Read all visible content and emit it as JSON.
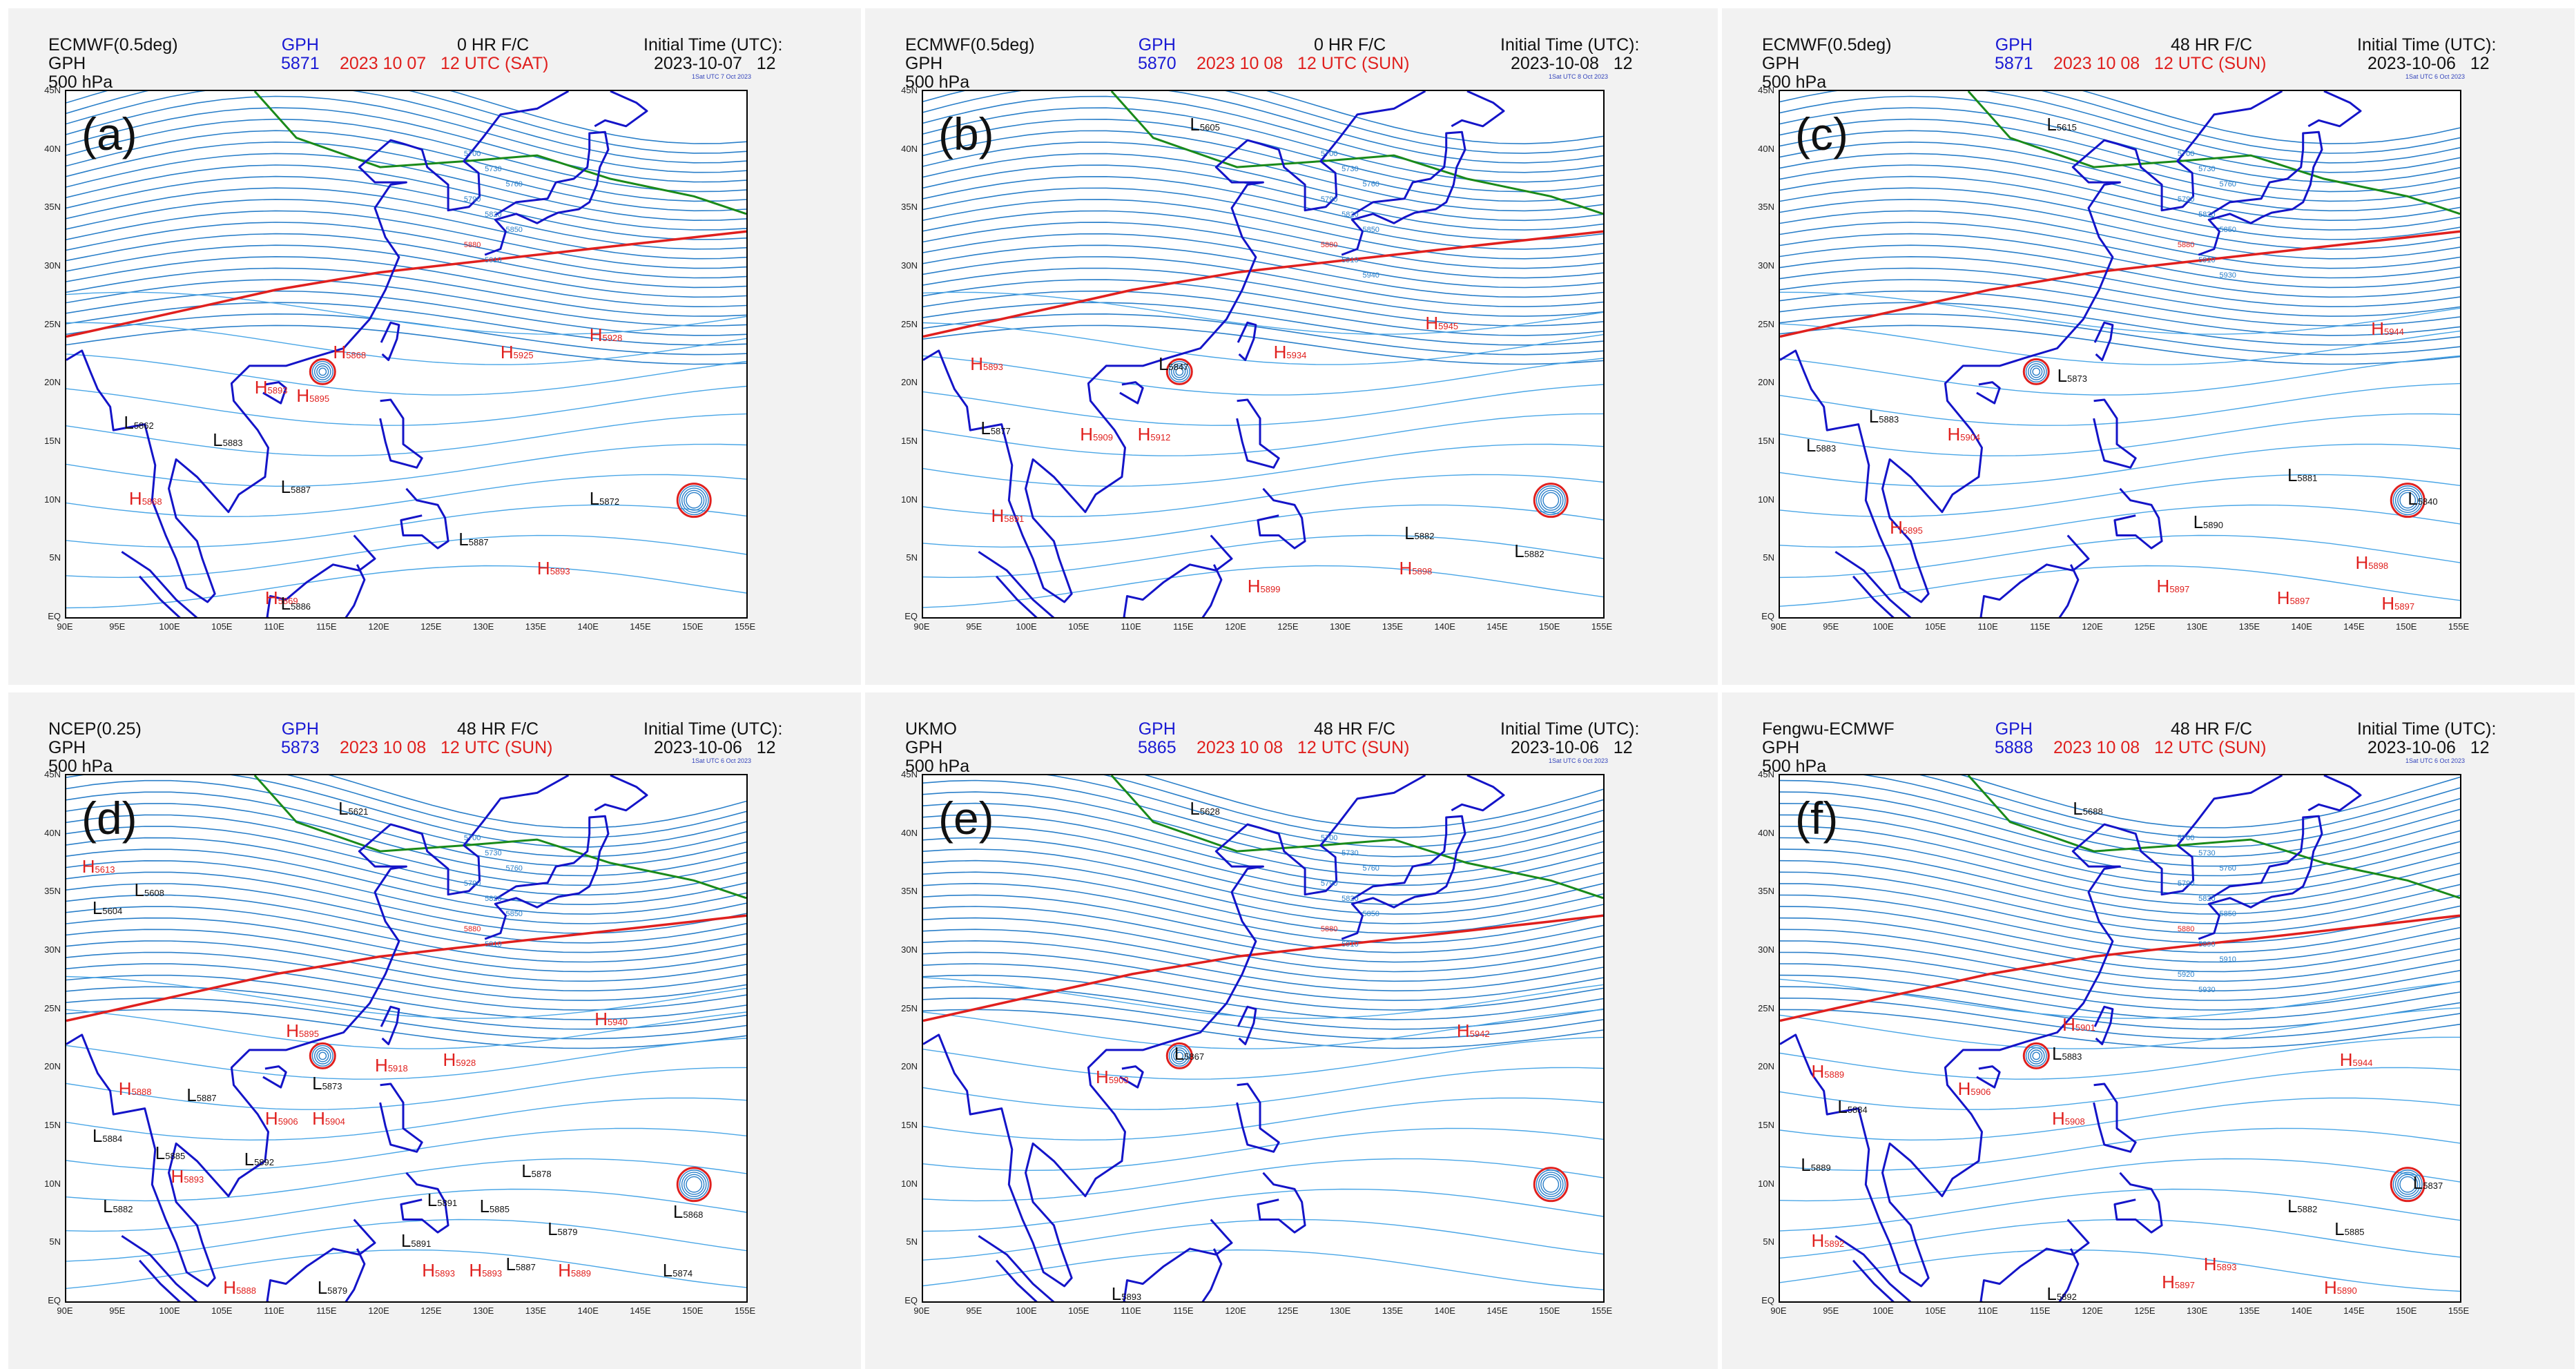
{
  "colors": {
    "contour": "#4aa6e6",
    "contour_dense": "#2a7fc9",
    "ridge_5880": "#e0201e",
    "trough_5700": "#1a8a1a",
    "coast": "#1414c8",
    "gph_text": "#1a1ad4",
    "valid_text": "#e0201e"
  },
  "axes": {
    "lat_ticks": [
      "45N",
      "40N",
      "35N",
      "30N",
      "25N",
      "20N",
      "15N",
      "10N",
      "5N",
      "EQ"
    ],
    "lon_ticks": [
      "90E",
      "95E",
      "100E",
      "105E",
      "110E",
      "115E",
      "120E",
      "125E",
      "130E",
      "135E",
      "140E",
      "145E",
      "150E",
      "155E"
    ]
  },
  "panels": [
    {
      "letter": "(a)",
      "title_lines": "ECMWF(0.5deg)\nGPH\n500 hPa",
      "gph_label": "GPH",
      "gph_value": "5871",
      "forecast": "0 HR F/C",
      "valid": "2023 10 07   12 UTC (SAT)",
      "init_label": "Initial Time (UTC):",
      "init_date": "2023-10-07   12",
      "stamp": "1Sat UTC 7 Oct 2023",
      "contour_labels": [
        "5700",
        "5730",
        "5760",
        "5790",
        "5820",
        "5850",
        "5880",
        "5910"
      ],
      "systems": [
        {
          "t": "H",
          "v": "5868",
          "lon": 115.5,
          "lat": 22.5
        },
        {
          "t": "H",
          "v": "5893",
          "lon": 108,
          "lat": 19.5
        },
        {
          "t": "H",
          "v": "5895",
          "lon": 112,
          "lat": 18.8
        },
        {
          "t": "H",
          "v": "5925",
          "lon": 131.5,
          "lat": 22.5
        },
        {
          "t": "H",
          "v": "5928",
          "lon": 140,
          "lat": 24
        },
        {
          "t": "H",
          "v": "5868",
          "lon": 96,
          "lat": 10
        },
        {
          "t": "H",
          "v": "5893",
          "lon": 135,
          "lat": 4
        },
        {
          "t": "H",
          "v": "5869",
          "lon": 109,
          "lat": 1.5
        },
        {
          "t": "L",
          "v": "5862",
          "lon": 95.5,
          "lat": 16.5
        },
        {
          "t": "L",
          "v": "5883",
          "lon": 104,
          "lat": 15
        },
        {
          "t": "L",
          "v": "5887",
          "lon": 110.5,
          "lat": 11
        },
        {
          "t": "L",
          "v": "5872",
          "lon": 140,
          "lat": 10
        },
        {
          "t": "L",
          "v": "5887",
          "lon": 127.5,
          "lat": 6.5
        },
        {
          "t": "L",
          "v": "5886",
          "lon": 110.5,
          "lat": 1
        }
      ]
    },
    {
      "letter": "(b)",
      "title_lines": "ECMWF(0.5deg)\nGPH\n500 hPa",
      "gph_label": "GPH",
      "gph_value": "5870",
      "forecast": "0 HR F/C",
      "valid": "2023 10 08   12 UTC (SUN)",
      "init_label": "Initial Time (UTC):",
      "init_date": "2023-10-08   12",
      "stamp": "1Sat UTC 8 Oct 2023",
      "contour_labels": [
        "5700",
        "5730",
        "5760",
        "5790",
        "5820",
        "5850",
        "5880",
        "5910",
        "5940"
      ],
      "systems": [
        {
          "t": "L",
          "v": "5605",
          "lon": 115.5,
          "lat": 42
        },
        {
          "t": "H",
          "v": "5893",
          "lon": 94.5,
          "lat": 21.5
        },
        {
          "t": "H",
          "v": "5934",
          "lon": 123.5,
          "lat": 22.5
        },
        {
          "t": "H",
          "v": "5945",
          "lon": 138,
          "lat": 25
        },
        {
          "t": "L",
          "v": "5847",
          "lon": 112.5,
          "lat": 21.5
        },
        {
          "t": "L",
          "v": "5877",
          "lon": 95.5,
          "lat": 16
        },
        {
          "t": "H",
          "v": "5909",
          "lon": 105,
          "lat": 15.5
        },
        {
          "t": "H",
          "v": "5912",
          "lon": 110.5,
          "lat": 15.5
        },
        {
          "t": "H",
          "v": "5891",
          "lon": 96.5,
          "lat": 8.5
        },
        {
          "t": "L",
          "v": "5882",
          "lon": 136,
          "lat": 7
        },
        {
          "t": "L",
          "v": "5882",
          "lon": 146.5,
          "lat": 5.5
        },
        {
          "t": "H",
          "v": "5898",
          "lon": 135.5,
          "lat": 4
        },
        {
          "t": "H",
          "v": "5899",
          "lon": 121,
          "lat": 2.5
        }
      ]
    },
    {
      "letter": "(c)",
      "title_lines": "ECMWF(0.5deg)\nGPH\n500 hPa",
      "gph_label": "GPH",
      "gph_value": "5871",
      "forecast": "48 HR F/C",
      "valid": "2023 10 08   12 UTC (SUN)",
      "init_label": "Initial Time (UTC):",
      "init_date": "2023-10-06   12",
      "stamp": "1Sat UTC 6 Oct 2023",
      "contour_labels": [
        "5700",
        "5730",
        "5760",
        "5790",
        "5820",
        "5850",
        "5880",
        "5910",
        "5930"
      ],
      "systems": [
        {
          "t": "L",
          "v": "5615",
          "lon": 115.5,
          "lat": 42
        },
        {
          "t": "H",
          "v": "5944",
          "lon": 146.5,
          "lat": 24.5
        },
        {
          "t": "L",
          "v": "5873",
          "lon": 116.5,
          "lat": 20.5
        },
        {
          "t": "L",
          "v": "5883",
          "lon": 98.5,
          "lat": 17
        },
        {
          "t": "L",
          "v": "5883",
          "lon": 92.5,
          "lat": 14.5
        },
        {
          "t": "H",
          "v": "5904",
          "lon": 106,
          "lat": 15.5
        },
        {
          "t": "L",
          "v": "5881",
          "lon": 138.5,
          "lat": 12
        },
        {
          "t": "L",
          "v": "5840",
          "lon": 150,
          "lat": 10
        },
        {
          "t": "H",
          "v": "5895",
          "lon": 100.5,
          "lat": 7.5
        },
        {
          "t": "L",
          "v": "5890",
          "lon": 129.5,
          "lat": 8
        },
        {
          "t": "H",
          "v": "5898",
          "lon": 145,
          "lat": 4.5
        },
        {
          "t": "H",
          "v": "5897",
          "lon": 126,
          "lat": 2.5
        },
        {
          "t": "H",
          "v": "5897",
          "lon": 137.5,
          "lat": 1.5
        },
        {
          "t": "H",
          "v": "5897",
          "lon": 147.5,
          "lat": 1
        }
      ]
    },
    {
      "letter": "(d)",
      "title_lines": "NCEP(0.25)\nGPH\n500 hPa",
      "gph_label": "GPH",
      "gph_value": "5873",
      "forecast": "48 HR F/C",
      "valid": "2023 10 08   12 UTC (SUN)",
      "init_label": "Initial Time (UTC):",
      "init_date": "2023-10-06   12",
      "stamp": "1Sat UTC 6 Oct 2023",
      "contour_labels": [
        "5700",
        "5730",
        "5760",
        "5790",
        "5820",
        "5850",
        "5880",
        "5910"
      ],
      "systems": [
        {
          "t": "L",
          "v": "5621",
          "lon": 116,
          "lat": 42
        },
        {
          "t": "H",
          "v": "5613",
          "lon": 91.5,
          "lat": 37
        },
        {
          "t": "L",
          "v": "5608",
          "lon": 96.5,
          "lat": 35
        },
        {
          "t": "L",
          "v": "5604",
          "lon": 92.5,
          "lat": 33.5
        },
        {
          "t": "H",
          "v": "5940",
          "lon": 140.5,
          "lat": 24
        },
        {
          "t": "H",
          "v": "5895",
          "lon": 111,
          "lat": 23
        },
        {
          "t": "H",
          "v": "5918",
          "lon": 119.5,
          "lat": 20
        },
        {
          "t": "H",
          "v": "5928",
          "lon": 126,
          "lat": 20.5
        },
        {
          "t": "L",
          "v": "5873",
          "lon": 113.5,
          "lat": 18.5
        },
        {
          "t": "H",
          "v": "5888",
          "lon": 95,
          "lat": 18
        },
        {
          "t": "L",
          "v": "5887",
          "lon": 101.5,
          "lat": 17.5
        },
        {
          "t": "H",
          "v": "5906",
          "lon": 109,
          "lat": 15.5
        },
        {
          "t": "H",
          "v": "5904",
          "lon": 113.5,
          "lat": 15.5
        },
        {
          "t": "L",
          "v": "5884",
          "lon": 92.5,
          "lat": 14
        },
        {
          "t": "L",
          "v": "5885",
          "lon": 98.5,
          "lat": 12.5
        },
        {
          "t": "L",
          "v": "5892",
          "lon": 107,
          "lat": 12
        },
        {
          "t": "H",
          "v": "5893",
          "lon": 100,
          "lat": 10.5
        },
        {
          "t": "L",
          "v": "5878",
          "lon": 133.5,
          "lat": 11
        },
        {
          "t": "L",
          "v": "5891",
          "lon": 124.5,
          "lat": 8.5
        },
        {
          "t": "L",
          "v": "5885",
          "lon": 129.5,
          "lat": 8
        },
        {
          "t": "L",
          "v": "5882",
          "lon": 93.5,
          "lat": 8
        },
        {
          "t": "L",
          "v": "5879",
          "lon": 136,
          "lat": 6
        },
        {
          "t": "L",
          "v": "5868",
          "lon": 148,
          "lat": 7.5
        },
        {
          "t": "L",
          "v": "5891",
          "lon": 122,
          "lat": 5
        },
        {
          "t": "L",
          "v": "5887",
          "lon": 132,
          "lat": 3
        },
        {
          "t": "H",
          "v": "5893",
          "lon": 124,
          "lat": 2.5
        },
        {
          "t": "H",
          "v": "5893",
          "lon": 128.5,
          "lat": 2.5
        },
        {
          "t": "H",
          "v": "5889",
          "lon": 137,
          "lat": 2.5
        },
        {
          "t": "L",
          "v": "5874",
          "lon": 147,
          "lat": 2.5
        },
        {
          "t": "H",
          "v": "5888",
          "lon": 105,
          "lat": 1
        },
        {
          "t": "L",
          "v": "5879",
          "lon": 114,
          "lat": 1
        }
      ]
    },
    {
      "letter": "(e)",
      "title_lines": "UKMO\nGPH\n500 hPa",
      "gph_label": "GPH",
      "gph_value": "5865",
      "forecast": "48 HR F/C",
      "valid": "2023 10 08   12 UTC (SUN)",
      "init_label": "Initial Time (UTC):",
      "init_date": "2023-10-06   12",
      "stamp": "1Sat UTC 6 Oct 2023",
      "contour_labels": [
        "5700",
        "5730",
        "5760",
        "5790",
        "5820",
        "5850",
        "5880",
        "5910"
      ],
      "systems": [
        {
          "t": "L",
          "v": "5628",
          "lon": 115.5,
          "lat": 42
        },
        {
          "t": "H",
          "v": "5942",
          "lon": 141,
          "lat": 23
        },
        {
          "t": "L",
          "v": "5867",
          "lon": 114,
          "lat": 21
        },
        {
          "t": "H",
          "v": "5903",
          "lon": 106.5,
          "lat": 19
        },
        {
          "t": "L",
          "v": "5893",
          "lon": 108,
          "lat": 0.5
        }
      ]
    },
    {
      "letter": "(f)",
      "title_lines": "Fengwu-ECMWF\nGPH\n500 hPa",
      "gph_label": "GPH",
      "gph_value": "5888",
      "forecast": "48 HR F/C",
      "valid": "2023 10 08   12 UTC (SUN)",
      "init_label": "Initial Time (UTC):",
      "init_date": "2023-10-06   12",
      "stamp": "1Sat UTC 6 Oct 2023",
      "contour_labels": [
        "5700",
        "5730",
        "5760",
        "5790",
        "5820",
        "5850",
        "5880",
        "5890",
        "5910",
        "5920",
        "5930"
      ],
      "systems": [
        {
          "t": "L",
          "v": "5688",
          "lon": 118,
          "lat": 42
        },
        {
          "t": "H",
          "v": "5901",
          "lon": 117,
          "lat": 23.5
        },
        {
          "t": "L",
          "v": "5883",
          "lon": 116,
          "lat": 21
        },
        {
          "t": "H",
          "v": "5889",
          "lon": 93,
          "lat": 19.5
        },
        {
          "t": "H",
          "v": "5906",
          "lon": 107,
          "lat": 18
        },
        {
          "t": "H",
          "v": "5944",
          "lon": 143.5,
          "lat": 20.5
        },
        {
          "t": "L",
          "v": "5884",
          "lon": 95.5,
          "lat": 16.5
        },
        {
          "t": "H",
          "v": "5908",
          "lon": 116,
          "lat": 15.5
        },
        {
          "t": "L",
          "v": "5889",
          "lon": 92,
          "lat": 11.5
        },
        {
          "t": "L",
          "v": "5837",
          "lon": 150.5,
          "lat": 10
        },
        {
          "t": "L",
          "v": "5882",
          "lon": 138.5,
          "lat": 8
        },
        {
          "t": "L",
          "v": "5885",
          "lon": 143,
          "lat": 6
        },
        {
          "t": "H",
          "v": "5892",
          "lon": 93,
          "lat": 5
        },
        {
          "t": "H",
          "v": "5893",
          "lon": 130.5,
          "lat": 3
        },
        {
          "t": "H",
          "v": "5897",
          "lon": 126.5,
          "lat": 1.5
        },
        {
          "t": "H",
          "v": "5890",
          "lon": 142,
          "lat": 1
        },
        {
          "t": "L",
          "v": "5892",
          "lon": 115.5,
          "lat": 0.5
        }
      ]
    }
  ]
}
